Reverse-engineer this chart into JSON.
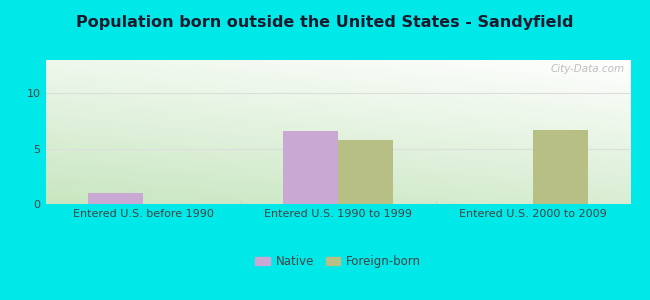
{
  "title": "Population born outside the United States - Sandyfield",
  "title_fontsize": 11.5,
  "title_fontweight": "bold",
  "title_color": "#1a1a2e",
  "groups": [
    "Entered U.S. before 1990",
    "Entered U.S. 1990 to 1999",
    "Entered U.S. 2000 to 2009"
  ],
  "native_values": [
    1.0,
    6.6,
    0.0
  ],
  "foreign_values": [
    0.0,
    5.8,
    6.7
  ],
  "native_color": "#c9a8d4",
  "foreign_color": "#b8bf85",
  "background_outer": "#00e8e8",
  "yticks": [
    0,
    5,
    10
  ],
  "ylim": [
    0,
    13
  ],
  "bar_width": 0.28,
  "legend_native": "Native",
  "legend_foreign": "Foreign-born",
  "watermark": "City-Data.com",
  "grad_top": "#ffffff",
  "grad_bottom": "#c8e6c0",
  "grad_left": "#c8e6c0",
  "tick_label_color": "#444444",
  "tick_label_fontsize": 8,
  "grid_color": "#dddddd"
}
